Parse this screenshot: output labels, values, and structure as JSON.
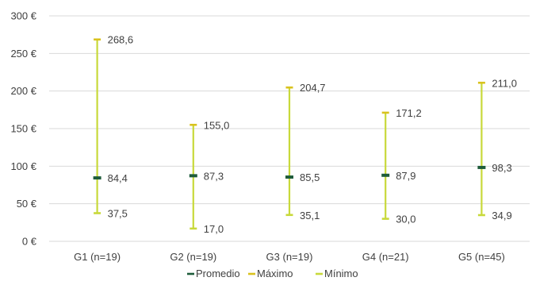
{
  "chart_data": {
    "type": "range",
    "title": "",
    "xlabel": "",
    "ylabel": "",
    "ylim": [
      0,
      300
    ],
    "y_ticks": [
      0,
      50,
      100,
      150,
      200,
      250,
      300
    ],
    "y_tick_labels": [
      "0 €",
      "50 €",
      "100 €",
      "150 €",
      "200 €",
      "250 €",
      "300 €"
    ],
    "categories": [
      "G1 (n=19)",
      "G2 (n=19)",
      "G3 (n=19)",
      "G4 (n=21)",
      "G5 (n=45)"
    ],
    "series": [
      {
        "name": "Promedio",
        "values": [
          84.4,
          87.3,
          85.5,
          87.9,
          98.3
        ],
        "labels": [
          "84,4",
          "87,3",
          "85,5",
          "87,9",
          "98,3"
        ]
      },
      {
        "name": "Máximo",
        "values": [
          268.6,
          155.0,
          204.7,
          171.2,
          211.0
        ],
        "labels": [
          "268,6",
          "155,0",
          "204,7",
          "171,2",
          "211,0"
        ]
      },
      {
        "name": "Mínimo",
        "values": [
          37.5,
          17.0,
          35.1,
          30.0,
          34.9
        ],
        "labels": [
          "37,5",
          "17,0",
          "35,1",
          "30,0",
          "34,9"
        ]
      }
    ],
    "grid": true,
    "legend_position": "bottom"
  },
  "colors": {
    "promedio": "#1e5c3a",
    "maximo": "#d9c21e",
    "minimo": "#c8d93a",
    "range_line": "#c8d93a",
    "grid": "#d9d9d9",
    "text": "#404040"
  }
}
